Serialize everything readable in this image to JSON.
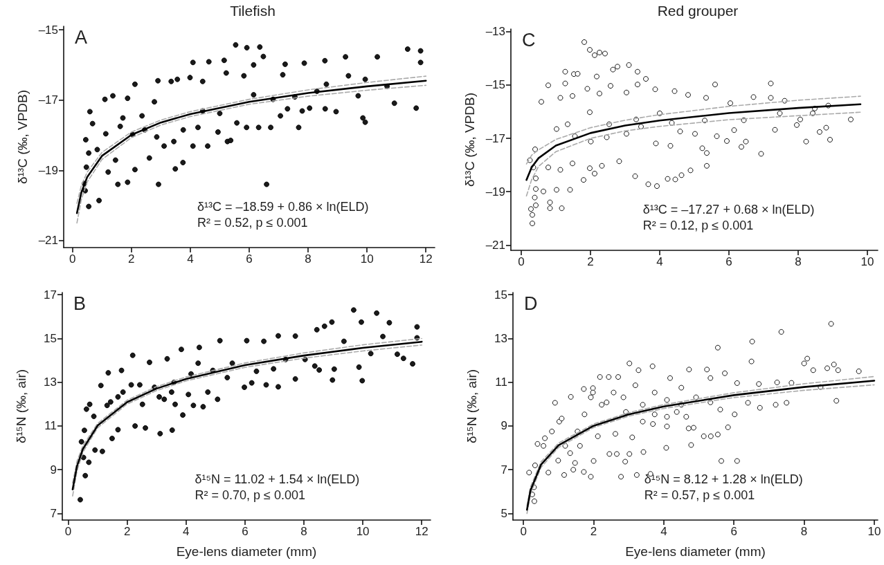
{
  "chart_data": [
    {
      "type": "scatter",
      "title": "Tilefish",
      "ylabel": "δ¹³C (‰, VPDB)",
      "annotations": [
        "A",
        "δ¹³C = –18.59 + 0.86 × ln(ELD)",
        "R² = 0.52, p ≤ 0.001"
      ],
      "xlim": [
        -0.3,
        12.3
      ],
      "xticks": [
        0,
        2,
        4,
        6,
        8,
        10,
        12
      ],
      "ylim": [
        -21.2,
        -14.9
      ],
      "yticks": [
        {
          "value": -21,
          "label": "–21"
        },
        {
          "value": -19,
          "label": "–19"
        },
        {
          "value": -17,
          "label": "–17"
        },
        {
          "value": -15,
          "label": "–15"
        }
      ],
      "marker": "circle",
      "series": [
        {
          "color": "#1a1a1a",
          "x": [
            5.54,
            5.92,
            6.36,
            6.48,
            11.38,
            11.82,
            11.82,
            10.35,
            9.27,
            8.57,
            7.87,
            7.22,
            4.09,
            4.63,
            5.15,
            2.12,
            2.9,
            3.35,
            3.56,
            3.99,
            4.42,
            5.22,
            5.82,
            6.15,
            1.1,
            1.37,
            1.87,
            0.59,
            0.68,
            0.45,
            0.55,
            0.47,
            0.43,
            0.55,
            0.9,
            0.4,
            1.54,
            1.87,
            2.92,
            6.59,
            3.49,
            3.75,
            2.12,
            1.21,
            1.13,
            1.62,
            2.04,
            2.45,
            2.86,
            3.11,
            3.44,
            3.76,
            4.09,
            4.26,
            4.59,
            4.94,
            5.26,
            5.37,
            4.42,
            5.0,
            5.58,
            5.91,
            6.32,
            6.73,
            7.06,
            7.3,
            7.68,
            7.8,
            8.05,
            8.58,
            8.95,
            9.86,
            9.94,
            10.93,
            11.67,
            9.7,
            10.68,
            9.94,
            9.37,
            8.62,
            8.3,
            7.55,
            7.14,
            6.81,
            6.15,
            2.78,
            2.36,
            1.71,
            0.84,
            1.46,
            2.61
          ],
          "values": [
            -15.43,
            -15.51,
            -15.49,
            -15.76,
            -15.55,
            -15.6,
            -15.93,
            -15.77,
            -15.77,
            -15.88,
            -15.95,
            -15.98,
            -15.93,
            -15.91,
            -15.87,
            -16.55,
            -16.45,
            -16.47,
            -16.41,
            -16.36,
            -16.47,
            -16.23,
            -16.31,
            -16.0,
            -16.98,
            -16.88,
            -16.95,
            -17.33,
            -17.67,
            -18.13,
            -18.51,
            -18.91,
            -19.58,
            -20.03,
            -19.86,
            -19.38,
            -19.4,
            -19.34,
            -19.4,
            -19.4,
            -18.96,
            -18.78,
            -18.98,
            -19.05,
            -17.96,
            -17.75,
            -17.98,
            -17.85,
            -18.05,
            -18.31,
            -18.18,
            -17.85,
            -18.31,
            -17.78,
            -18.31,
            -17.91,
            -18.18,
            -18.15,
            -17.31,
            -17.38,
            -17.65,
            -17.78,
            -17.78,
            -17.78,
            -17.45,
            -17.25,
            -17.78,
            -17.31,
            -17.23,
            -17.25,
            -17.33,
            -17.51,
            -17.63,
            -17.09,
            -17.23,
            -16.88,
            -16.61,
            -16.41,
            -16.31,
            -16.55,
            -16.75,
            -16.91,
            -16.28,
            -16.98,
            -16.85,
            -17.05,
            -17.45,
            -17.51,
            -18.41,
            -18.71,
            -18.65
          ]
        },
        {
          "type": "line",
          "marker": "none",
          "color": "#000000",
          "x": [
            0.15,
            0.3,
            0.5,
            1,
            2,
            3,
            4,
            6,
            8,
            10,
            12
          ],
          "values": [
            -20.22,
            -19.63,
            -19.19,
            -18.59,
            -17.99,
            -17.64,
            -17.4,
            -17.05,
            -16.8,
            -16.61,
            -16.45
          ]
        },
        {
          "type": "line",
          "marker": "none",
          "line_style": "dashed",
          "color": "#aaaaaa",
          "x": [
            0.15,
            0.3,
            0.5,
            1,
            2,
            3,
            4,
            6,
            8,
            10,
            12
          ],
          "values": [
            -20.5,
            -19.83,
            -19.33,
            -18.69,
            -18.07,
            -17.71,
            -17.47,
            -17.12,
            -16.89,
            -16.72,
            -16.58
          ]
        },
        {
          "type": "line",
          "marker": "none",
          "line_style": "dashed",
          "color": "#aaaaaa",
          "x": [
            0.15,
            0.3,
            0.5,
            1,
            2,
            3,
            4,
            6,
            8,
            10,
            12
          ],
          "values": [
            -19.94,
            -19.43,
            -19.05,
            -18.49,
            -17.91,
            -17.57,
            -17.33,
            -16.98,
            -16.71,
            -16.5,
            -16.32
          ]
        }
      ]
    },
    {
      "type": "scatter",
      "title": "Red grouper",
      "ylabel": "δ¹³C (‰, VPDB)",
      "annotations": [
        "C",
        "δ¹³C = –17.27 + 0.68 × ln(ELD)",
        "R² = 0.12, p ≤ 0.001"
      ],
      "xlim": [
        -0.3,
        10.3
      ],
      "xticks": [
        0,
        2,
        4,
        6,
        8,
        10
      ],
      "ylim": [
        -21.2,
        -12.9
      ],
      "yticks": [
        {
          "value": -21,
          "label": "–21"
        },
        {
          "value": -19,
          "label": "–19"
        },
        {
          "value": -17,
          "label": "–17"
        },
        {
          "value": -15,
          "label": "–15"
        },
        {
          "value": -13,
          "label": "–13"
        }
      ],
      "marker": "circle",
      "series": [
        {
          "color": "#ffffff",
          "x": [
            1.82,
            1.98,
            2.12,
            2.26,
            2.42,
            1.27,
            1.52,
            1.63,
            2.65,
            2.78,
            3.11,
            3.36,
            3.6,
            2.18,
            0.78,
            1.27,
            0.58,
            1.13,
            1.48,
            1.91,
            2.26,
            2.58,
            3.04,
            3.36,
            3.87,
            4.43,
            4.82,
            5.6,
            7.21,
            6.71,
            7.21,
            7.61,
            8.48,
            8.87,
            8.42,
            8.06,
            7.96,
            9.52,
            8.81,
            8.62,
            8.92,
            8.23,
            6.93,
            7.33,
            7.47,
            6.49,
            6.36,
            6.43,
            6.04,
            5.34,
            5.36,
            5.36,
            4.89,
            4.63,
            4.45,
            4.23,
            3.92,
            3.67,
            3.29,
            2.83,
            2.33,
            2.12,
            1.8,
            1.41,
            1.17,
            0.83,
            0.83,
            0.32,
            0.32,
            0.28,
            0.42,
            0.39,
            0.42,
            0.42,
            0.35,
            0.25,
            0.4,
            0.64,
            1.02,
            1.13,
            0.78,
            1.98,
            1.48,
            1.55,
            2.01,
            2.47,
            3.04,
            3.46,
            3.89,
            4.31,
            4.59,
            5.02,
            5.23,
            5.65,
            5.94,
            6.15,
            4.0,
            4.35,
            3.32,
            2.54,
            1.98,
            1.34,
            1.02,
            5.3
          ],
          "values": [
            -13.39,
            -13.68,
            -13.88,
            -13.78,
            -13.82,
            -14.5,
            -14.59,
            -14.58,
            -14.42,
            -14.31,
            -14.25,
            -14.5,
            -14.77,
            -14.68,
            -15.01,
            -14.94,
            -15.63,
            -15.48,
            -15.41,
            -15.14,
            -15.32,
            -15.03,
            -15.28,
            -14.98,
            -15.16,
            -15.23,
            -15.37,
            -14.98,
            -14.94,
            -15.45,
            -15.48,
            -15.59,
            -15.88,
            -15.77,
            -16.06,
            -16.29,
            -16.5,
            -16.29,
            -16.6,
            -16.76,
            -17.05,
            -17.12,
            -17.58,
            -16.68,
            -16.06,
            -17.12,
            -17.32,
            -16.32,
            -15.68,
            -15.48,
            -18.03,
            -17.55,
            -18.2,
            -18.38,
            -18.54,
            -18.52,
            -18.79,
            -18.72,
            -18.42,
            -17.86,
            -18.03,
            -18.32,
            -18.56,
            -18.93,
            -19.62,
            -19.62,
            -19.4,
            -20.19,
            -19.87,
            -19.65,
            -19.51,
            -19.22,
            -18.9,
            -18.5,
            -18.09,
            -17.82,
            -17.41,
            -18.99,
            -18.93,
            -18.18,
            -18.09,
            -18.12,
            -17.94,
            -16.92,
            -17.12,
            -16.96,
            -16.83,
            -16.56,
            -17.19,
            -17.28,
            -16.74,
            -16.83,
            -17.37,
            -16.92,
            -17.1,
            -16.69,
            -16.06,
            -16.42,
            -16.29,
            -16.47,
            -16.02,
            -16.47,
            -16.65,
            -16.33
          ]
        },
        {
          "type": "line",
          "marker": "none",
          "color": "#000000",
          "x": [
            0.15,
            0.3,
            0.5,
            1,
            2,
            3,
            4,
            6,
            8,
            9.8
          ],
          "values": [
            -18.56,
            -18.09,
            -17.74,
            -17.27,
            -16.8,
            -16.52,
            -16.33,
            -16.05,
            -15.86,
            -15.72
          ]
        },
        {
          "type": "line",
          "marker": "none",
          "line_style": "dashed",
          "color": "#aaaaaa",
          "x": [
            0.15,
            0.3,
            0.5,
            1,
            2,
            3,
            4,
            6,
            8,
            9.8
          ],
          "values": [
            -19.16,
            -18.55,
            -18.05,
            -17.5,
            -17.0,
            -16.72,
            -16.55,
            -16.3,
            -16.15,
            -16.02
          ]
        },
        {
          "type": "line",
          "marker": "none",
          "line_style": "dashed",
          "color": "#aaaaaa",
          "x": [
            0.15,
            0.3,
            0.5,
            1,
            2,
            3,
            4,
            6,
            8,
            9.8
          ],
          "values": [
            -17.96,
            -17.63,
            -17.43,
            -17.04,
            -16.6,
            -16.32,
            -16.11,
            -15.8,
            -15.57,
            -15.42
          ]
        }
      ]
    },
    {
      "type": "scatter",
      "xlabel": "Eye-lens diameter (mm)",
      "ylabel": "δ¹⁵N (‰, air)",
      "annotations": [
        "B",
        "δ¹⁵N = 11.02 + 1.54 × ln(ELD)",
        "R² = 0.70, p ≤ 0.001"
      ],
      "xlim": [
        -0.2,
        12.3
      ],
      "xticks": [
        0,
        2,
        4,
        6,
        8,
        10,
        12
      ],
      "ylim": [
        6.7,
        17.1
      ],
      "yticks": [
        7,
        9,
        11,
        13,
        15,
        17
      ],
      "marker": "circle",
      "series": [
        {
          "color": "#1a1a1a",
          "x": [
            9.69,
            10.47,
            8.95,
            10.9,
            11.84,
            9.95,
            8.7,
            8.44,
            7.71,
            7.13,
            6.64,
            6.06,
            5.15,
            4.45,
            3.84,
            2.19,
            2.76,
            3.36,
            1.36,
            1.81,
            1.11,
            0.62,
            0.73,
            0.55,
            0.45,
            0.52,
            0.58,
            0.41,
            0.7,
            0.91,
            1.16,
            1.49,
            1.69,
            2.27,
            2.62,
            3.12,
            3.53,
            3.89,
            4.25,
            4.58,
            5.07,
            5.98,
            6.23,
            6.72,
            7.13,
            7.71,
            8.37,
            8.52,
            8.97,
            9.03,
            9.87,
            9.98,
            11.38,
            11.69,
            11.17,
            10.27,
            11.84,
            10.68,
            9.36,
            8.04,
            7.38,
            5.57,
            4.91,
            4.17,
            3.51,
            2.93,
            2.43,
            1.86,
            1.44,
            2.52,
            3.26,
            3.63,
            4.08,
            4.74,
            5.4,
            4.41,
            3.59,
            3.09,
            2.14,
            1.69,
            1.32,
            0.87,
            6.97,
            6.39
          ],
          "values": [
            16.3,
            16.16,
            15.75,
            15.72,
            15.53,
            15.75,
            15.56,
            15.4,
            15.11,
            15.12,
            14.87,
            14.9,
            14.9,
            14.59,
            14.5,
            14.23,
            13.91,
            14.07,
            13.43,
            13.54,
            12.85,
            11.77,
            11.99,
            10.8,
            10.28,
            9.56,
            8.73,
            7.63,
            9.34,
            9.9,
            9.84,
            10.43,
            10.83,
            11.0,
            10.91,
            10.65,
            10.81,
            11.5,
            11.94,
            11.88,
            12.22,
            12.77,
            12.97,
            12.88,
            12.79,
            13.15,
            13.74,
            13.56,
            13.1,
            13.6,
            13.69,
            13.07,
            14.09,
            13.84,
            14.28,
            14.31,
            15.03,
            15.09,
            14.87,
            14.04,
            14.04,
            13.87,
            13.54,
            13.38,
            12.55,
            12.77,
            12.88,
            12.55,
            12.1,
            11.99,
            12.22,
            11.99,
            12.44,
            12.55,
            13.21,
            13.87,
            12.99,
            12.33,
            12.88,
            12.33,
            11.94,
            11.44,
            13.61,
            13.5
          ]
        },
        {
          "type": "line",
          "marker": "none",
          "color": "#000000",
          "x": [
            0.15,
            0.3,
            0.5,
            1,
            2,
            3,
            4,
            6,
            8,
            10,
            12
          ],
          "values": [
            8.1,
            9.17,
            9.95,
            11.02,
            12.09,
            12.71,
            13.15,
            13.78,
            14.22,
            14.57,
            14.85
          ]
        },
        {
          "type": "line",
          "marker": "none",
          "line_style": "dashed",
          "color": "#aaaaaa",
          "x": [
            0.15,
            0.3,
            0.5,
            1,
            2,
            3,
            4,
            6,
            8,
            10,
            12
          ],
          "values": [
            7.8,
            8.95,
            9.8,
            10.92,
            12.0,
            12.62,
            13.06,
            13.68,
            14.1,
            14.43,
            14.7
          ]
        },
        {
          "type": "line",
          "marker": "none",
          "line_style": "dashed",
          "color": "#aaaaaa",
          "x": [
            0.15,
            0.3,
            0.5,
            1,
            2,
            3,
            4,
            6,
            8,
            10,
            12
          ],
          "values": [
            8.4,
            9.39,
            10.1,
            11.12,
            12.18,
            12.8,
            13.24,
            13.88,
            14.34,
            14.71,
            15.0
          ]
        }
      ]
    },
    {
      "type": "scatter",
      "xlabel": "Eye-lens diameter (mm)",
      "ylabel": "δ¹⁵N (‰, air)",
      "annotations": [
        "D",
        "δ¹⁵N = 8.12 + 1.28 × ln(ELD)",
        "R² = 0.57, p ≤ 0.001"
      ],
      "xlim": [
        -0.3,
        10.1
      ],
      "xticks": [
        0,
        2,
        4,
        6,
        8,
        10
      ],
      "ylim": [
        4.7,
        15.1
      ],
      "yticks": [
        5,
        7,
        9,
        11,
        13,
        15
      ],
      "marker": "circle",
      "series": [
        {
          "color": "#ffffff",
          "x": [
            8.77,
            7.35,
            6.52,
            5.54,
            6.5,
            8.09,
            8.0,
            8.85,
            8.66,
            8.26,
            8.97,
            9.56,
            8.47,
            8.92,
            3.02,
            3.68,
            3.28,
            2.18,
            2.43,
            2.7,
            5.23,
            4.72,
            5.74,
            4.18,
            1.72,
            1.98,
            1.35,
            0.9,
            1.92,
            1.02,
            1.09,
            0.81,
            0.4,
            0.61,
            0.16,
            0.3,
            0.31,
            0.25,
            0.33,
            0.71,
            1.16,
            1.42,
            1.72,
            1.92,
            1.47,
            2.0,
            2.45,
            2.66,
            2.78,
            2.9,
            3.02,
            3.23,
            3.42,
            3.62,
            4.07,
            4.78,
            5.64,
            6.09,
            5.14,
            5.34,
            5.54,
            5.83,
            4.85,
            4.71,
            4.09,
            3.69,
            3.1,
            2.62,
            2.12,
            1.61,
            1.33,
            1.54,
            1.74,
            2.37,
            2.85,
            3.4,
            4.09,
            4.5,
            4.92,
            5.33,
            5.61,
            6.02,
            6.4,
            6.74,
            7.19,
            7.5,
            7.64,
            7.23,
            6.71,
            6.09,
            5.33,
            4.5,
            3.74,
            3.19,
            2.57,
            1.98,
            2.23,
            2.92,
            3.74,
            4.37,
            3.4,
            4.09,
            4.64,
            1.19,
            0.99,
            0.57
          ],
          "values": [
            13.67,
            13.3,
            12.86,
            12.58,
            11.95,
            12.08,
            11.86,
            11.81,
            11.64,
            11.55,
            11.55,
            11.5,
            10.78,
            10.15,
            11.86,
            11.73,
            11.55,
            11.24,
            11.24,
            11.24,
            11.58,
            11.58,
            11.41,
            11.19,
            10.69,
            10.73,
            10.33,
            10.06,
            10.31,
            9.2,
            9.34,
            8.75,
            8.18,
            8.44,
            6.87,
            6.2,
            5.56,
            5.87,
            7.2,
            6.87,
            6.76,
            7.0,
            6.9,
            6.68,
            7.31,
            7.4,
            7.72,
            7.72,
            6.68,
            7.37,
            7.72,
            6.76,
            7.81,
            6.81,
            8.0,
            8.13,
            7.4,
            7.4,
            8.53,
            8.53,
            8.61,
            8.94,
            8.92,
            8.89,
            8.98,
            9.09,
            8.48,
            8.64,
            8.53,
            8.09,
            7.76,
            8.75,
            9.53,
            10.08,
            10.31,
            9.97,
            10.19,
            9.97,
            10.31,
            10.08,
            9.75,
            9.53,
            10.06,
            9.83,
            9.97,
            10.06,
            10.97,
            10.99,
            10.92,
            10.96,
            11.19,
            10.75,
            10.53,
            10.86,
            10.53,
            10.53,
            9.97,
            9.64,
            9.53,
            9.64,
            9.2,
            9.42,
            9.42,
            8.09,
            7.42,
            8.09
          ]
        },
        {
          "type": "line",
          "marker": "none",
          "color": "#000000",
          "x": [
            0.1,
            0.2,
            0.5,
            1,
            2,
            3,
            4,
            6,
            8,
            10
          ],
          "values": [
            5.17,
            6.06,
            7.23,
            8.12,
            9.01,
            9.53,
            9.89,
            10.41,
            10.78,
            11.07
          ]
        },
        {
          "type": "line",
          "marker": "none",
          "line_style": "dashed",
          "color": "#aaaaaa",
          "x": [
            0.1,
            0.2,
            0.5,
            1,
            2,
            3,
            4,
            6,
            8,
            10
          ],
          "values": [
            5.0,
            5.9,
            7.1,
            8.02,
            8.93,
            9.45,
            9.8,
            10.3,
            10.63,
            10.88
          ]
        },
        {
          "type": "line",
          "marker": "none",
          "line_style": "dashed",
          "color": "#aaaaaa",
          "x": [
            0.1,
            0.2,
            0.5,
            1,
            2,
            3,
            4,
            6,
            8,
            10
          ],
          "values": [
            5.34,
            6.22,
            7.36,
            8.22,
            9.09,
            9.61,
            9.98,
            10.52,
            10.93,
            11.26
          ]
        }
      ]
    }
  ]
}
